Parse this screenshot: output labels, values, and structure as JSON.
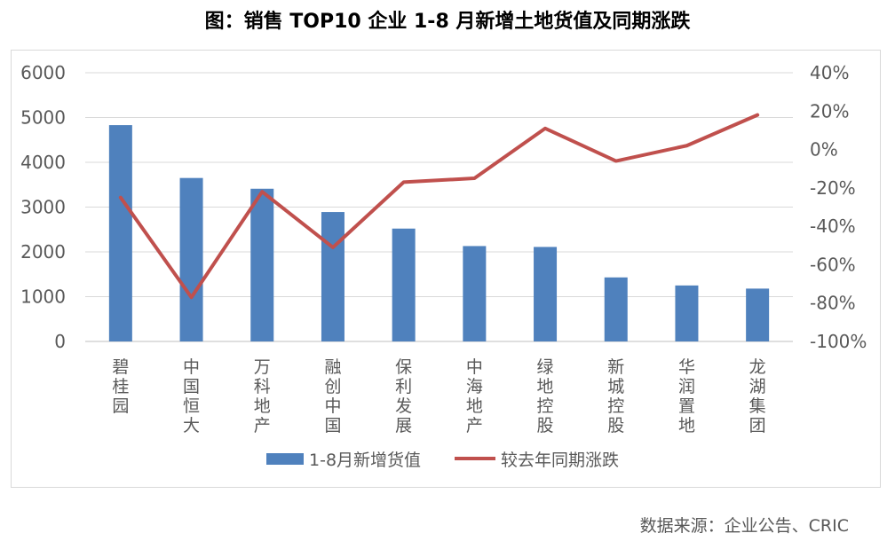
{
  "title": "图：销售 TOP10 企业 1-8 月新增土地货值及同期涨跌",
  "source": "数据来源：企业公告、CRIC",
  "chart_data": {
    "type": "bar+line",
    "categories": [
      "碧桂园",
      "中国恒大",
      "万科地产",
      "融创中国",
      "保利发展",
      "中海地产",
      "绿地控股",
      "新城控股",
      "华润置地",
      "龙湖集团"
    ],
    "series": [
      {
        "name": "1-8月新增货值",
        "type": "bar",
        "axis": "left",
        "color": "#4f81bd",
        "values": [
          4830,
          3650,
          3410,
          2890,
          2520,
          2130,
          2110,
          1430,
          1250,
          1180
        ]
      },
      {
        "name": "较去年同期涨跌",
        "type": "line",
        "axis": "right",
        "color": "#c0504d",
        "values": [
          -25,
          -77,
          -22,
          -51,
          -17,
          -15,
          11,
          -6,
          2,
          18
        ]
      }
    ],
    "y_left": {
      "min": 0,
      "max": 6000,
      "step": 1000,
      "ticks": [
        "0",
        "1000",
        "2000",
        "3000",
        "4000",
        "5000",
        "6000"
      ]
    },
    "y_right": {
      "min": -100,
      "max": 40,
      "step": 20,
      "ticks": [
        "-100%",
        "-80%",
        "-60%",
        "-40%",
        "-20%",
        "0%",
        "20%",
        "40%"
      ]
    },
    "legend": [
      "1-8月新增货值",
      "较去年同期涨跌"
    ],
    "legend_position": "bottom",
    "grid": true
  }
}
